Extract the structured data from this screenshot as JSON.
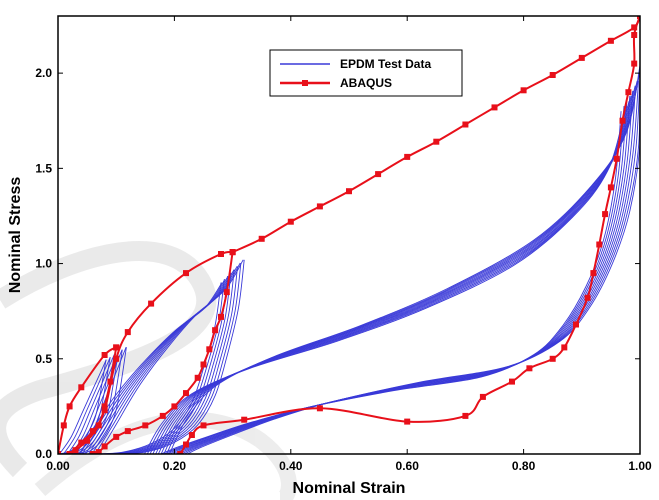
{
  "chart_data": {
    "type": "line",
    "title": "",
    "xlabel": "Nominal Strain",
    "ylabel": "Nominal Stress",
    "xlim": [
      0.0,
      1.0
    ],
    "ylim": [
      0.0,
      2.3
    ],
    "xticks": [
      0.0,
      0.2,
      0.4,
      0.6,
      0.8,
      1.0
    ],
    "xtick_labels": [
      "0.00",
      "0.20",
      "0.40",
      "0.60",
      "0.80",
      "1.00"
    ],
    "yticks": [
      0.0,
      0.5,
      1.0,
      1.5,
      2.0
    ],
    "ytick_labels": [
      "0.0",
      "0.5",
      "1.0",
      "1.5",
      "2.0"
    ],
    "grid": false,
    "legend_position": "top-center",
    "series": [
      {
        "name": "EPDM Test Data",
        "color": "#3a3ad8",
        "style": "thin-line",
        "loops": [
          {
            "load": [
              [
                0.02,
                0.0
              ],
              [
                0.04,
                0.1
              ],
              [
                0.06,
                0.25
              ],
              [
                0.08,
                0.4
              ],
              [
                0.1,
                0.55
              ]
            ],
            "unload": [
              [
                0.1,
                0.55
              ],
              [
                0.09,
                0.35
              ],
              [
                0.08,
                0.2
              ],
              [
                0.06,
                0.08
              ],
              [
                0.04,
                0.02
              ],
              [
                0.02,
                0.0
              ]
            ],
            "repeats": 6,
            "spread": 0.035
          },
          {
            "load": [
              [
                0.05,
                0.0
              ],
              [
                0.08,
                0.15
              ],
              [
                0.12,
                0.35
              ],
              [
                0.17,
                0.55
              ],
              [
                0.22,
                0.72
              ],
              [
                0.27,
                0.85
              ],
              [
                0.3,
                1.0
              ]
            ],
            "unload": [
              [
                0.3,
                1.0
              ],
              [
                0.29,
                0.75
              ],
              [
                0.27,
                0.5
              ],
              [
                0.25,
                0.3
              ],
              [
                0.22,
                0.15
              ],
              [
                0.18,
                0.06
              ],
              [
                0.13,
                0.01
              ],
              [
                0.08,
                0.0
              ]
            ],
            "repeats": 8,
            "spread": 0.04
          },
          {
            "load": [
              [
                0.17,
                0.0
              ],
              [
                0.2,
                0.18
              ],
              [
                0.25,
                0.35
              ],
              [
                0.35,
                0.5
              ],
              [
                0.5,
                0.66
              ],
              [
                0.65,
                0.85
              ],
              [
                0.8,
                1.1
              ],
              [
                0.9,
                1.38
              ],
              [
                0.96,
                1.65
              ],
              [
                0.99,
                2.0
              ]
            ],
            "unload": [
              [
                0.99,
                2.0
              ],
              [
                0.98,
                1.6
              ],
              [
                0.96,
                1.25
              ],
              [
                0.93,
                0.98
              ],
              [
                0.89,
                0.75
              ],
              [
                0.84,
                0.58
              ],
              [
                0.75,
                0.45
              ],
              [
                0.6,
                0.37
              ],
              [
                0.45,
                0.27
              ],
              [
                0.35,
                0.18
              ],
              [
                0.27,
                0.09
              ],
              [
                0.22,
                0.03
              ],
              [
                0.2,
                0.0
              ]
            ],
            "repeats": 10,
            "spread": 0.045
          }
        ]
      },
      {
        "name": "ABAQUS",
        "color": "#e8101a",
        "style": "line-square-markers",
        "segments": [
          [
            [
              0.0,
              0.0
            ],
            [
              0.01,
              0.15
            ],
            [
              0.02,
              0.25
            ],
            [
              0.04,
              0.35
            ],
            [
              0.08,
              0.52
            ],
            [
              0.1,
              0.56
            ]
          ],
          [
            [
              0.1,
              0.56
            ],
            [
              0.09,
              0.38
            ],
            [
              0.08,
              0.25
            ],
            [
              0.07,
              0.15
            ],
            [
              0.05,
              0.07
            ],
            [
              0.03,
              0.02
            ],
            [
              0.02,
              0.0
            ]
          ],
          [
            [
              0.02,
              0.0
            ],
            [
              0.04,
              0.06
            ],
            [
              0.06,
              0.12
            ],
            [
              0.08,
              0.23
            ],
            [
              0.1,
              0.5
            ],
            [
              0.12,
              0.64
            ],
            [
              0.16,
              0.79
            ],
            [
              0.22,
              0.95
            ],
            [
              0.28,
              1.05
            ],
            [
              0.3,
              1.06
            ]
          ],
          [
            [
              0.3,
              1.06
            ],
            [
              0.29,
              0.85
            ],
            [
              0.28,
              0.72
            ],
            [
              0.27,
              0.65
            ],
            [
              0.26,
              0.55
            ],
            [
              0.25,
              0.47
            ],
            [
              0.24,
              0.4
            ],
            [
              0.22,
              0.32
            ],
            [
              0.2,
              0.25
            ],
            [
              0.18,
              0.2
            ],
            [
              0.15,
              0.15
            ],
            [
              0.12,
              0.12
            ],
            [
              0.1,
              0.09
            ],
            [
              0.08,
              0.04
            ],
            [
              0.07,
              0.01
            ],
            [
              0.06,
              0.0
            ]
          ],
          [
            [
              0.3,
              1.06
            ],
            [
              0.35,
              1.13
            ],
            [
              0.4,
              1.22
            ],
            [
              0.45,
              1.3
            ],
            [
              0.5,
              1.38
            ],
            [
              0.55,
              1.47
            ],
            [
              0.6,
              1.56
            ],
            [
              0.65,
              1.64
            ],
            [
              0.7,
              1.73
            ],
            [
              0.75,
              1.82
            ],
            [
              0.8,
              1.91
            ],
            [
              0.85,
              1.99
            ],
            [
              0.9,
              2.08
            ],
            [
              0.95,
              2.17
            ],
            [
              0.99,
              2.24
            ],
            [
              1.0,
              2.3
            ]
          ],
          [
            [
              1.0,
              2.3
            ],
            [
              0.99,
              2.2
            ],
            [
              0.99,
              2.05
            ],
            [
              0.98,
              1.9
            ],
            [
              0.97,
              1.75
            ],
            [
              0.96,
              1.55
            ],
            [
              0.95,
              1.4
            ],
            [
              0.94,
              1.26
            ],
            [
              0.93,
              1.1
            ],
            [
              0.92,
              0.95
            ],
            [
              0.91,
              0.82
            ],
            [
              0.89,
              0.68
            ],
            [
              0.87,
              0.56
            ],
            [
              0.85,
              0.5
            ],
            [
              0.81,
              0.45
            ],
            [
              0.78,
              0.38
            ],
            [
              0.73,
              0.3
            ],
            [
              0.7,
              0.2
            ],
            [
              0.6,
              0.17
            ],
            [
              0.45,
              0.24
            ],
            [
              0.32,
              0.18
            ],
            [
              0.25,
              0.15
            ],
            [
              0.23,
              0.1
            ],
            [
              0.22,
              0.05
            ],
            [
              0.21,
              0.0
            ]
          ]
        ]
      }
    ]
  },
  "legend": {
    "items": [
      {
        "label": "EPDM Test Data",
        "color": "#3a3ad8",
        "marker": "line"
      },
      {
        "label": "ABAQUS",
        "color": "#e8101a",
        "marker": "square"
      }
    ]
  }
}
